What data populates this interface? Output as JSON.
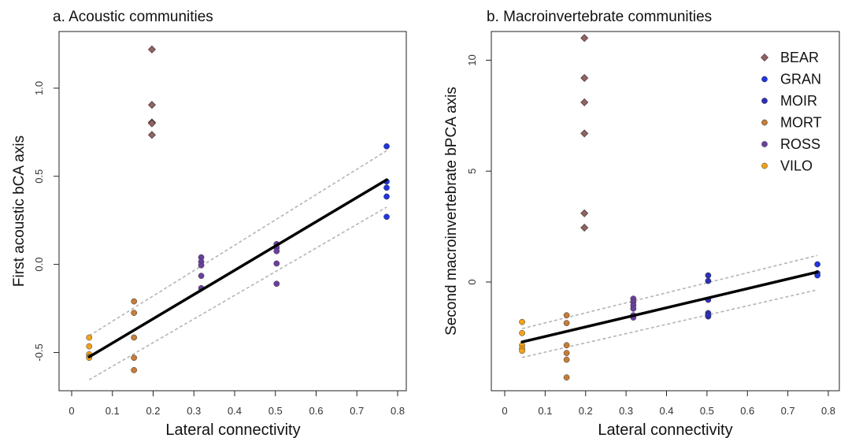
{
  "chart_data": [
    {
      "type": "scatter",
      "title": "a. Acoustic communities",
      "xlabel": "Lateral connectivity",
      "ylabel": "First acoustic bCA axis",
      "xlim": [
        0,
        0.8
      ],
      "ylim": [
        -0.65,
        1.25
      ],
      "xticks": [
        "0",
        "0.1",
        "0.2",
        "0.3",
        "0.4",
        "0.5",
        "0.6",
        "0.7",
        "0.8"
      ],
      "yticks": [
        "-0.5",
        "0.0",
        "0.5",
        "1.0"
      ],
      "series": [
        {
          "name": "BEAR",
          "color": "#8f6463",
          "marker": "diamond",
          "x": [
            0.197,
            0.197,
            0.197,
            0.197,
            0.197,
            0.197
          ],
          "y": [
            1.22,
            0.905,
            0.805,
            0.805,
            0.735,
            0.8
          ]
        },
        {
          "name": "GRAN",
          "color": "#1f35e0",
          "marker": "circle",
          "x": [
            0.773,
            0.773,
            0.773,
            0.773,
            0.773
          ],
          "y": [
            0.67,
            0.47,
            0.435,
            0.385,
            0.27
          ]
        },
        {
          "name": "MOIR",
          "color": "#2c2fb8",
          "marker": "circle",
          "x": [],
          "y": []
        },
        {
          "name": "MORT",
          "color": "#c57d37",
          "marker": "circle",
          "x": [
            0.153,
            0.153,
            0.153,
            0.153,
            0.153
          ],
          "y": [
            -0.21,
            -0.275,
            -0.415,
            -0.53,
            -0.6
          ]
        },
        {
          "name": "ROSS",
          "color": "#6b3fa0",
          "marker": "circle",
          "x": [
            0.318,
            0.318,
            0.318,
            0.318,
            0.318,
            0.503,
            0.503,
            0.503,
            0.503,
            0.503
          ],
          "y": [
            0.04,
            0.015,
            -0.005,
            -0.065,
            -0.135,
            0.115,
            0.095,
            0.075,
            0.005,
            -0.11
          ]
        },
        {
          "name": "VILO",
          "color": "#f4a21a",
          "marker": "circle",
          "x": [
            0.043,
            0.043,
            0.043,
            0.043,
            0.043
          ],
          "y": [
            -0.415,
            -0.465,
            -0.51,
            -0.525,
            -0.53
          ]
        }
      ],
      "fit": {
        "x": [
          0.043,
          0.773
        ],
        "y": [
          -0.525,
          0.48
        ]
      },
      "ci_upper": {
        "x": [
          0.043,
          0.773
        ],
        "y": [
          -0.405,
          0.645
        ]
      },
      "ci_lower": {
        "x": [
          0.043,
          0.773
        ],
        "y": [
          -0.655,
          0.325
        ]
      },
      "legend": false
    },
    {
      "type": "scatter",
      "title": "b. Macroinvertebrate communities",
      "xlabel": "Lateral connectivity",
      "ylabel": "Second macroinvertebrate bPCA axis",
      "xlim": [
        0,
        0.8
      ],
      "ylim": [
        -4.9,
        11.4
      ],
      "xticks": [
        "0",
        "0.1",
        "0.2",
        "0.3",
        "0.4",
        "0.5",
        "0.6",
        "0.7",
        "0.8"
      ],
      "yticks": [
        "0",
        "5",
        "10"
      ],
      "series": [
        {
          "name": "BEAR",
          "color": "#8f6463",
          "marker": "diamond",
          "x": [
            0.197,
            0.197,
            0.197,
            0.197,
            0.197,
            0.197
          ],
          "y": [
            11.0,
            9.2,
            8.1,
            6.7,
            3.1,
            2.45
          ]
        },
        {
          "name": "GRAN",
          "color": "#1f35e0",
          "marker": "circle",
          "x": [
            0.773,
            0.773,
            0.773
          ],
          "y": [
            0.8,
            0.4,
            0.3
          ]
        },
        {
          "name": "MOIR",
          "color": "#2c2fb8",
          "marker": "circle",
          "x": [
            0.503,
            0.503,
            0.503,
            0.503,
            0.503,
            0.503
          ],
          "y": [
            0.3,
            0.05,
            -0.8,
            -1.4,
            -1.55,
            -1.5
          ]
        },
        {
          "name": "MORT",
          "color": "#c57d37",
          "marker": "circle",
          "x": [
            0.153,
            0.153,
            0.153,
            0.153,
            0.153,
            0.153
          ],
          "y": [
            -1.5,
            -1.85,
            -2.85,
            -3.2,
            -3.5,
            -4.3
          ]
        },
        {
          "name": "ROSS",
          "color": "#6b3fa0",
          "marker": "circle",
          "x": [
            0.318,
            0.318,
            0.318,
            0.318,
            0.318,
            0.318
          ],
          "y": [
            -0.75,
            -0.9,
            -1.05,
            -1.2,
            -1.5,
            -1.6
          ]
        },
        {
          "name": "VILO",
          "color": "#f4a21a",
          "marker": "circle",
          "x": [
            0.043,
            0.043,
            0.043,
            0.043,
            0.043
          ],
          "y": [
            -1.8,
            -2.3,
            -2.85,
            -3.0,
            -3.1
          ]
        }
      ],
      "fit": {
        "x": [
          0.043,
          0.773
        ],
        "y": [
          -2.7,
          0.45
        ]
      },
      "ci_upper": {
        "x": [
          0.043,
          0.773
        ],
        "y": [
          -2.1,
          1.2
        ]
      },
      "ci_lower": {
        "x": [
          0.043,
          0.773
        ],
        "y": [
          -3.4,
          -0.35
        ]
      },
      "legend": true,
      "legend_position": "top-right"
    }
  ]
}
